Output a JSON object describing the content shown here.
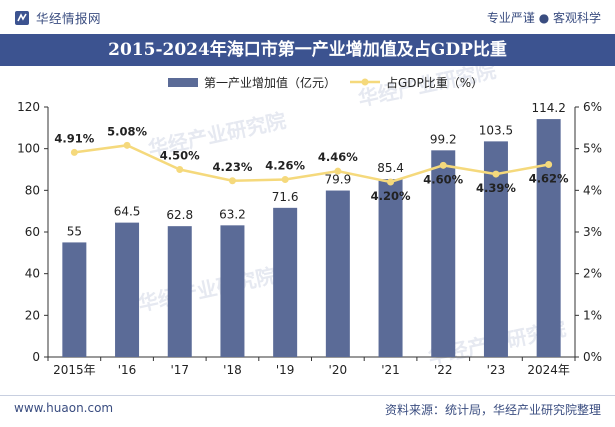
{
  "brand": {
    "logo_text": "华经情报网",
    "tagline": "专业严谨 ● 客观科学"
  },
  "footer": {
    "url": "www.huaon.com",
    "source": "资料来源：统计局，华经产业研究院整理"
  },
  "watermark": "华经产业研究院",
  "colors": {
    "bar": "#5b6b97",
    "line": "#f5d97c",
    "title_band": "#3c5390",
    "text_dark": "#222222"
  },
  "chart_data": {
    "type": "bar",
    "title": "2015-2024年海口市第一产业增加值及占GDP比重",
    "categories": [
      "2015年",
      "'16",
      "'17",
      "'18",
      "'19",
      "'20",
      "'21",
      "'22",
      "'23",
      "2024年"
    ],
    "series": [
      {
        "name": "第一产业增加值（亿元）",
        "type": "bar",
        "axis": "left",
        "values": [
          55,
          64.5,
          62.8,
          63.2,
          71.6,
          79.9,
          85.4,
          99.2,
          103.5,
          114.2
        ],
        "labels": [
          "55",
          "64.5",
          "62.8",
          "63.2",
          "71.6",
          "79.9",
          "85.4",
          "99.2",
          "103.5",
          "114.2"
        ]
      },
      {
        "name": "占GDP比重（%）",
        "type": "line",
        "axis": "right",
        "values": [
          4.91,
          5.08,
          4.5,
          4.23,
          4.26,
          4.46,
          4.2,
          4.6,
          4.39,
          4.62
        ],
        "labels": [
          "4.91%",
          "5.08%",
          "4.50%",
          "4.23%",
          "4.26%",
          "4.46%",
          "4.20%",
          "4.60%",
          "4.39%",
          "4.62%"
        ]
      }
    ],
    "y_left": {
      "min": 0,
      "max": 120,
      "ticks": [
        "0",
        "20",
        "40",
        "60",
        "80",
        "100",
        "120"
      ]
    },
    "y_right": {
      "min": 0,
      "max": 6,
      "ticks": [
        "0%",
        "1%",
        "2%",
        "3%",
        "4%",
        "5%",
        "6%"
      ]
    },
    "legend_position": "top-center",
    "grid": false
  }
}
